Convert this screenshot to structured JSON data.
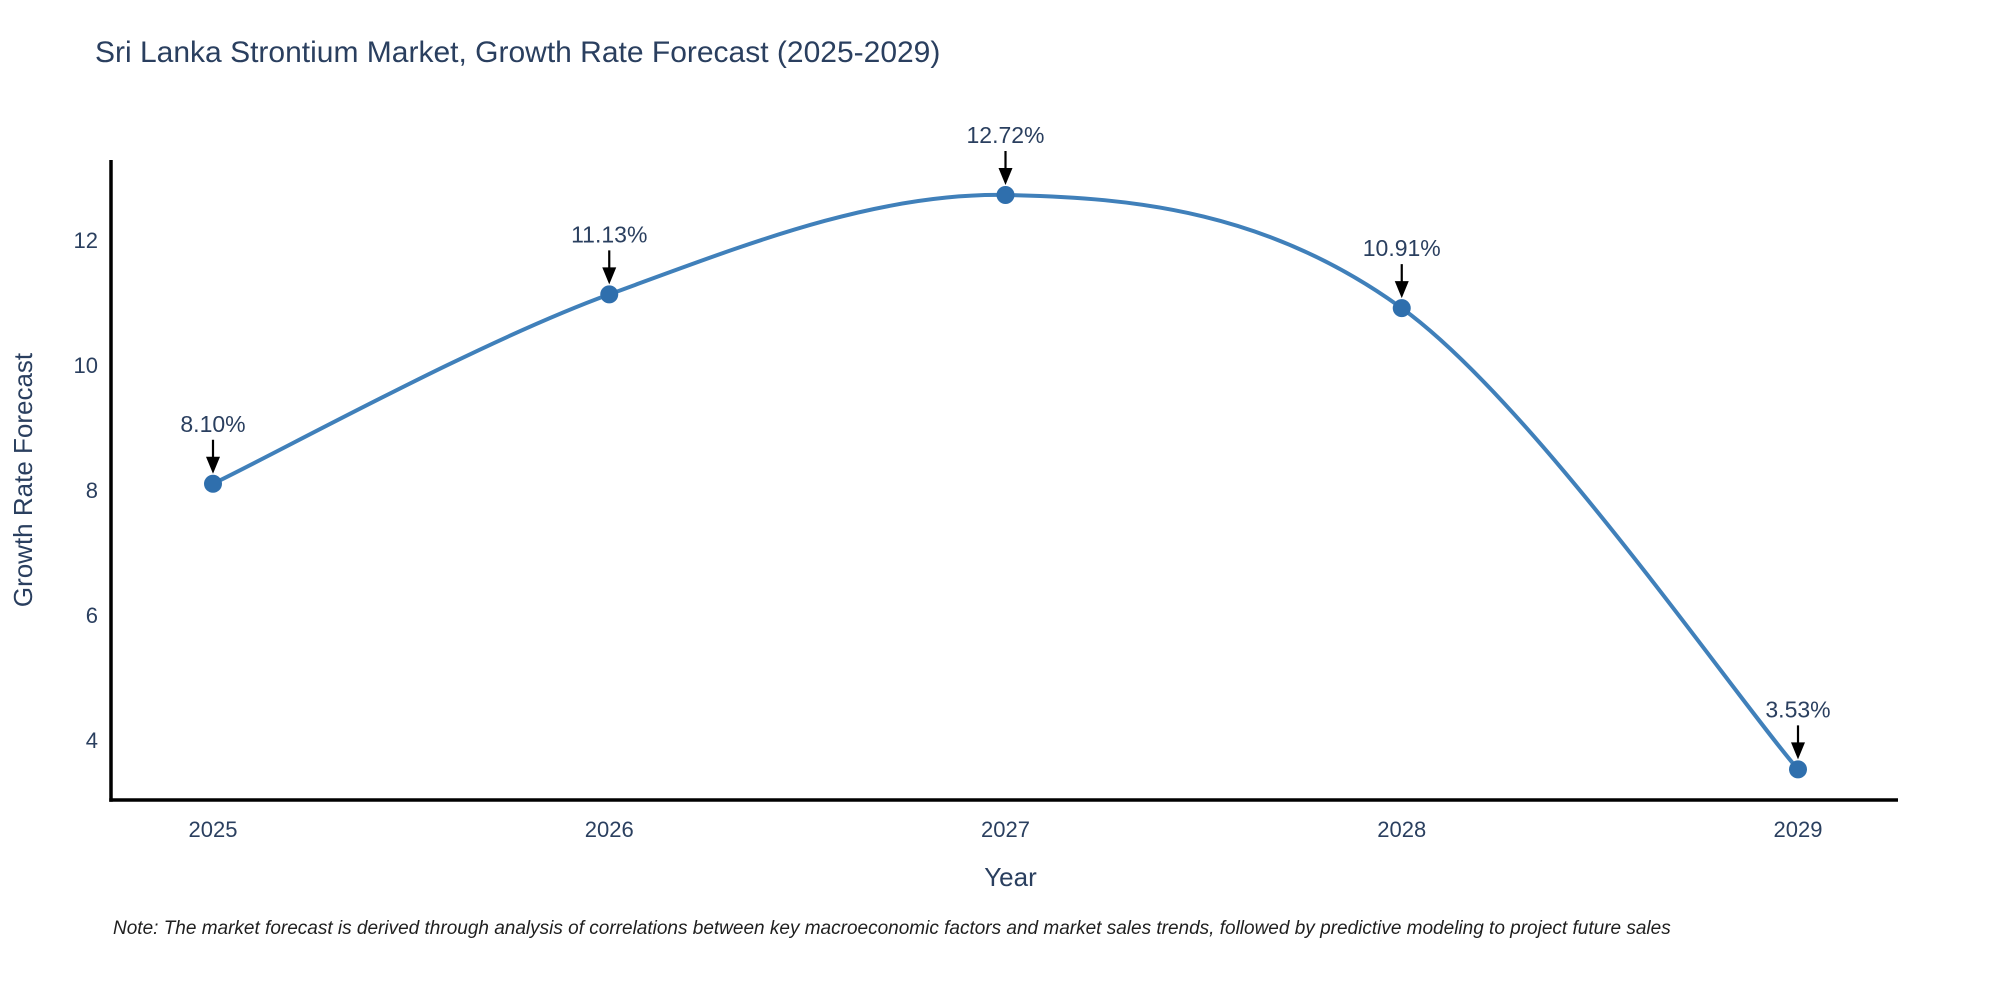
{
  "title": "Sri Lanka Strontium Market, Growth Rate Forecast (2025-2029)",
  "note": "Note: The market forecast is derived through analysis of correlations between key macroeconomic factors and market sales trends, followed by predictive modeling to project future sales",
  "chart_data": {
    "type": "line",
    "title": "Sri Lanka Strontium Market, Growth Rate Forecast (2025-2029)",
    "x": [
      2025,
      2026,
      2027,
      2028,
      2029
    ],
    "series": [
      {
        "name": "Growth Rate Forecast",
        "values": [
          8.1,
          11.13,
          12.72,
          10.91,
          3.53
        ]
      }
    ],
    "point_labels": [
      "8.10%",
      "11.13%",
      "12.72%",
      "10.91%",
      "3.53%"
    ],
    "xlabel": "Year",
    "ylabel": "Growth Rate Forecast",
    "yticks": [
      4,
      6,
      8,
      10,
      12
    ],
    "ylim": [
      3.04,
      13.28
    ],
    "grid": false,
    "legend": "none",
    "line_shape": "spline",
    "colors": {
      "line": "#4080ba",
      "marker": "#2f6fad",
      "axis": "#000000",
      "text": "#2a3f5f",
      "annotation_text": "#2a3f5f",
      "annotation_arrow": "#000000",
      "note_text": "#1f1f1f"
    }
  }
}
